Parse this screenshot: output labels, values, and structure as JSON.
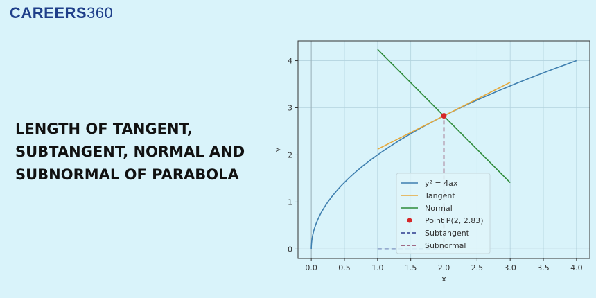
{
  "logo": {
    "brand": "CAREERS",
    "number": "360"
  },
  "headline": {
    "lines": [
      "LENGTH OF TANGENT,",
      "SUBTANGENT, NORMAL AND",
      "SUBNORMAL OF PARABOLA"
    ]
  },
  "colors": {
    "background": "#d9f3fa",
    "logo": "#1f3f8a",
    "parabola": "#3f7faf",
    "tangent": "#e5a83a",
    "normal": "#2e8b3a",
    "point": "#d62728",
    "subtangent": "#2b3a8c",
    "subnormal": "#8a3b5c"
  },
  "chart_data": {
    "type": "line",
    "xlabel": "x",
    "ylabel": "y",
    "xlim": [
      -0.2,
      4.2
    ],
    "ylim": [
      -0.2,
      4.42
    ],
    "xticks": [
      0.0,
      0.5,
      1.0,
      1.5,
      2.0,
      2.5,
      3.0,
      3.5,
      4.0
    ],
    "xtick_labels": [
      "0.0",
      "0.5",
      "1.0",
      "1.5",
      "2.0",
      "2.5",
      "3.0",
      "3.5",
      "4.0"
    ],
    "yticks": [
      0,
      1,
      2,
      3,
      4
    ],
    "ytick_labels": [
      "0",
      "1",
      "2",
      "3",
      "4"
    ],
    "grid": true,
    "legend_placement": "lower-center",
    "series": [
      {
        "name": "y² = 4ax",
        "kind": "curve",
        "equation": "y = 2*sqrt(x)",
        "x_range": [
          0,
          4
        ],
        "color": "#3f7faf"
      },
      {
        "name": "Tangent",
        "kind": "line",
        "points": [
          [
            1,
            2.12
          ],
          [
            3,
            3.54
          ]
        ],
        "color": "#e5a83a"
      },
      {
        "name": "Normal",
        "kind": "line",
        "points": [
          [
            1,
            4.24
          ],
          [
            3,
            1.41
          ]
        ],
        "color": "#2e8b3a"
      },
      {
        "name": "Point P(2, 2.83)",
        "kind": "point",
        "points": [
          [
            2,
            2.83
          ]
        ],
        "color": "#d62728"
      },
      {
        "name": "Subtangent",
        "kind": "dashed",
        "points": [
          [
            1,
            0
          ],
          [
            2,
            0
          ]
        ],
        "color": "#2b3a8c"
      },
      {
        "name": "Subnormal",
        "kind": "dashed",
        "points": [
          [
            2,
            0
          ],
          [
            2,
            2.83
          ]
        ],
        "color": "#8a3b5c"
      }
    ]
  }
}
